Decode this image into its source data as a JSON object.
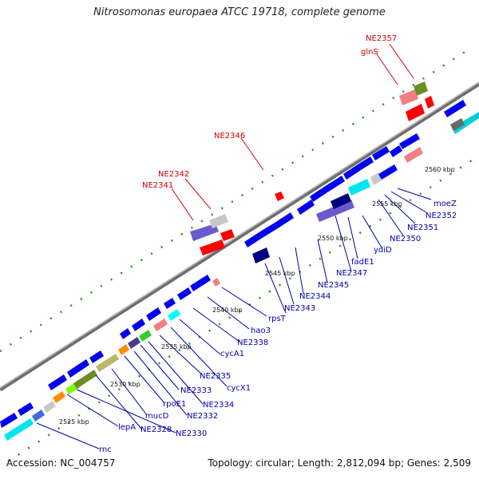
{
  "title": "Nitrosomonas europaea ATCC 19718, complete genome",
  "footer": {
    "accession": "Accession: NC_004757",
    "topology": "Topology: circular; Length: 2,812,094 bp; Genes: 2,509"
  },
  "colors": {
    "background": "#ffffff",
    "backbone": "#8c8c8c",
    "forward_gene": "#0000ee",
    "rna_gene": "#ff0000",
    "label_blue": "#0000aa",
    "label_red": "#cc0000",
    "tick": "#228b22"
  },
  "scale_ticks": [
    "2525 kbp",
    "2530 kbp",
    "2535 kbp",
    "2540 kbp",
    "2545 kbp",
    "2550 kbp",
    "2555 kbp",
    "2560 kbp"
  ],
  "gene_labels_red": [
    "NE2357",
    "glnS",
    "NE2346",
    "NE2342",
    "NE2341"
  ],
  "gene_labels_blue": [
    "moeZ",
    "NE2352",
    "NE2351",
    "NE2350",
    "ydiD",
    "fadE1",
    "NE2347",
    "NE2345",
    "NE2344",
    "NE2343",
    "rpsT",
    "hao3",
    "NE2338",
    "cycA1",
    "cycX1",
    "NE2335",
    "NE2334",
    "NE2333",
    "NE2332",
    "rpoE1",
    "mucD",
    "NE2328",
    "NE2330",
    "lepA",
    "rnc"
  ]
}
